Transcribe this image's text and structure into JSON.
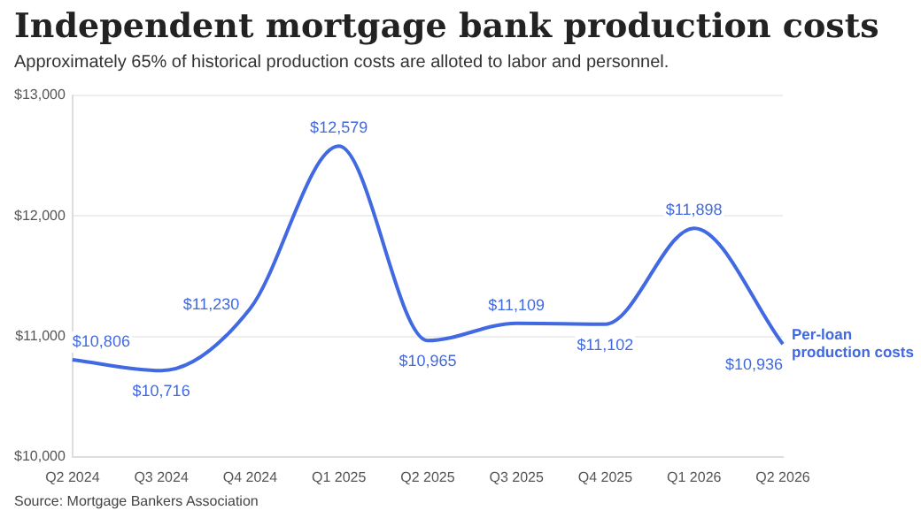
{
  "chart_data": {
    "type": "line",
    "title": "Independent mortgage bank production costs",
    "subtitle": "Approximately 65% of historical production costs are alloted to labor and personnel.",
    "categories": [
      "Q2 2024",
      "Q3 2024",
      "Q4 2024",
      "Q1 2025",
      "Q2 2025",
      "Q3 2025",
      "Q4 2025",
      "Q1 2026",
      "Q2 2026"
    ],
    "series": [
      {
        "name": "Per-loan production costs",
        "color": "#4169e1",
        "values": [
          10806,
          10716,
          11230,
          12579,
          10965,
          11109,
          11102,
          11898,
          10936
        ],
        "value_labels": [
          "$10,806",
          "$10,716",
          "$11,230",
          "$12,579",
          "$10,965",
          "$11,109",
          "$11,102",
          "$11,898",
          "$10,936"
        ]
      }
    ],
    "ylim": [
      10000,
      13000
    ],
    "yticks": [
      {
        "value": 10000,
        "label": "$10,000"
      },
      {
        "value": 11000,
        "label": "$11,000"
      },
      {
        "value": 12000,
        "label": "$12,000"
      },
      {
        "value": 13000,
        "label": "$13,000"
      }
    ],
    "grid": "y",
    "legend": false,
    "marker": "none",
    "line_style": "solid",
    "annotations": [
      "Source: Mortgage Bankers Association"
    ]
  }
}
